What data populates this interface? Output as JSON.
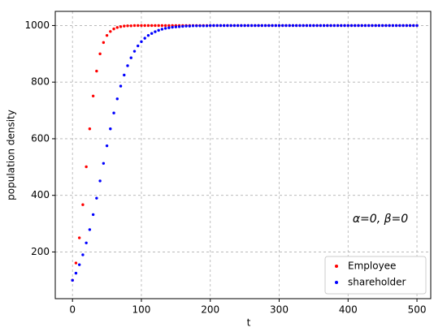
{
  "chart_data": {
    "type": "scatter",
    "x_label": "t",
    "y_label": "population density",
    "annotation": "α=0, β=0",
    "x": [
      0,
      5,
      10,
      15,
      20,
      25,
      30,
      35,
      40,
      45,
      50,
      55,
      60,
      65,
      70,
      75,
      80,
      85,
      90,
      95,
      100,
      105,
      110,
      115,
      120,
      125,
      130,
      135,
      140,
      145,
      150,
      155,
      160,
      165,
      170,
      175,
      180,
      185,
      190,
      195,
      200,
      205,
      210,
      215,
      220,
      225,
      230,
      235,
      240,
      245,
      250,
      255,
      260,
      265,
      270,
      275,
      280,
      285,
      290,
      295,
      300,
      305,
      310,
      315,
      320,
      325,
      330,
      335,
      340,
      345,
      350,
      355,
      360,
      365,
      370,
      375,
      380,
      385,
      390,
      395,
      400,
      405,
      410,
      415,
      420,
      425,
      430,
      435,
      440,
      445,
      450,
      455,
      460,
      465,
      470,
      475,
      480,
      485,
      490,
      495,
      500
    ],
    "series": [
      {
        "name": "Employee",
        "color": "#ff0000",
        "values": [
          100,
          161,
          250,
          367,
          501,
          635,
          751,
          839,
          900,
          940,
          965,
          979,
          988,
          993,
          996,
          998,
          999,
          999,
          1000,
          1000,
          1000,
          1000,
          1000,
          1000,
          1000,
          1000,
          1000,
          1000,
          1000,
          1000,
          1000,
          1000,
          1000,
          1000,
          1000,
          1000,
          1000,
          1000,
          1000,
          1000,
          1000,
          1000,
          1000,
          1000,
          1000,
          1000,
          1000,
          1000,
          1000,
          1000,
          1000,
          1000,
          1000,
          1000,
          1000,
          1000,
          1000,
          1000,
          1000,
          1000,
          1000,
          1000,
          1000,
          1000,
          1000,
          1000,
          1000,
          1000,
          1000,
          1000,
          1000,
          1000,
          1000,
          1000,
          1000,
          1000,
          1000,
          1000,
          1000,
          1000,
          1000,
          1000,
          1000,
          1000,
          1000,
          1000,
          1000,
          1000,
          1000,
          1000,
          1000,
          1000,
          1000,
          1000,
          1000,
          1000,
          1000,
          1000,
          1000,
          1000,
          1000
        ]
      },
      {
        "name": "shareholder",
        "color": "#0000ff",
        "values": [
          100,
          125,
          155,
          190,
          232,
          279,
          332,
          390,
          451,
          513,
          575,
          635,
          691,
          741,
          786,
          825,
          858,
          886,
          909,
          928,
          943,
          955,
          965,
          972,
          978,
          983,
          987,
          990,
          992,
          994,
          995,
          996,
          997,
          998,
          998,
          999,
          999,
          999,
          999,
          999,
          1000,
          1000,
          1000,
          1000,
          1000,
          1000,
          1000,
          1000,
          1000,
          1000,
          1000,
          1000,
          1000,
          1000,
          1000,
          1000,
          1000,
          1000,
          1000,
          1000,
          1000,
          1000,
          1000,
          1000,
          1000,
          1000,
          1000,
          1000,
          1000,
          1000,
          1000,
          1000,
          1000,
          1000,
          1000,
          1000,
          1000,
          1000,
          1000,
          1000,
          1000,
          1000,
          1000,
          1000,
          1000,
          1000,
          1000,
          1000,
          1000,
          1000,
          1000,
          1000,
          1000,
          1000,
          1000,
          1000,
          1000,
          1000,
          1000,
          1000,
          1000
        ]
      }
    ],
    "xlim": [
      -25,
      520
    ],
    "ylim": [
      35,
      1050
    ],
    "xticks": [
      0,
      100,
      200,
      300,
      400,
      500
    ],
    "yticks": [
      200,
      400,
      600,
      800,
      1000
    ],
    "grid": true,
    "legend": "lower right"
  }
}
